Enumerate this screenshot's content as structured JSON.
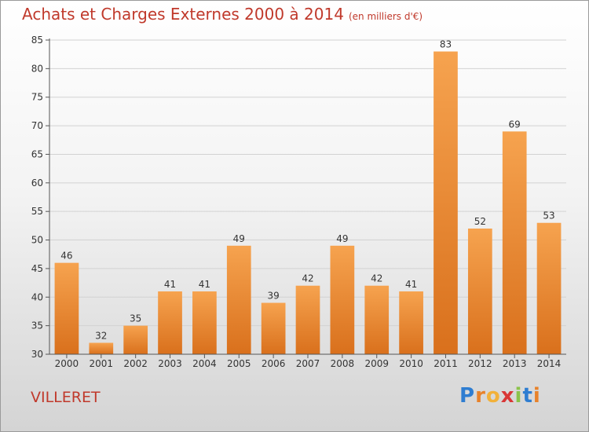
{
  "title": "Achats et Charges Externes 2000 à 2014",
  "unit": "(en milliers d'€)",
  "commune": "VILLERET",
  "logo": {
    "letters": [
      "P",
      "r",
      "o",
      "x",
      "i",
      "t",
      "i"
    ],
    "colors": [
      "#2e7dd1",
      "#e8822a",
      "#f2b13a",
      "#d93636",
      "#8bc34a",
      "#2e7dd1",
      "#e8822a"
    ]
  },
  "chart_data": {
    "type": "bar",
    "categories": [
      "2000",
      "2001",
      "2002",
      "2003",
      "2004",
      "2005",
      "2006",
      "2007",
      "2008",
      "2009",
      "2010",
      "2011",
      "2012",
      "2013",
      "2014"
    ],
    "values": [
      46,
      32,
      35,
      41,
      41,
      49,
      39,
      42,
      49,
      42,
      41,
      83,
      52,
      69,
      53
    ],
    "ylim": [
      30,
      85
    ],
    "yticks": [
      30,
      35,
      40,
      45,
      50,
      55,
      60,
      65,
      70,
      75,
      80,
      85
    ],
    "grid": true,
    "bar_color_top": "#f6a34f",
    "bar_color_bottom": "#d9701c"
  }
}
